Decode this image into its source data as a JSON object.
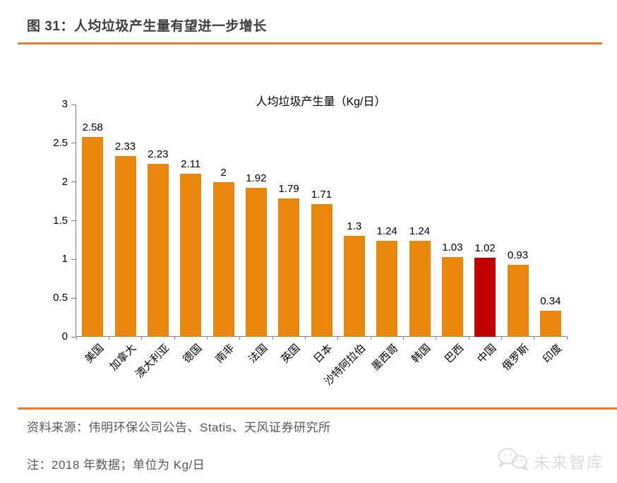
{
  "figure": {
    "title": "图 31：人均垃圾产生量有望进一步增长"
  },
  "chart_data": {
    "type": "bar",
    "title": "人均垃圾产生量（Kg/日）",
    "categories": [
      "美国",
      "加拿大",
      "澳大利亚",
      "德国",
      "南非",
      "法国",
      "英国",
      "日本",
      "沙特阿拉伯",
      "墨西哥",
      "韩国",
      "巴西",
      "中国",
      "俄罗斯",
      "印度"
    ],
    "values": [
      2.58,
      2.33,
      2.23,
      2.11,
      2,
      1.92,
      1.79,
      1.71,
      1.3,
      1.24,
      1.24,
      1.03,
      1.02,
      0.93,
      0.34
    ],
    "value_labels": [
      "2.58",
      "2.33",
      "2.23",
      "2.11",
      "2",
      "1.92",
      "1.79",
      "1.71",
      "1.3",
      "1.24",
      "1.24",
      "1.03",
      "1.02",
      "0.93",
      "0.34"
    ],
    "highlight_category": "中国",
    "highlight_index": 12,
    "ylim": [
      0,
      3
    ],
    "yticks": [
      0,
      0.5,
      1,
      1.5,
      2,
      2.5,
      3
    ],
    "ytick_labels": [
      "0",
      "0.5",
      "1",
      "1.5",
      "2",
      "2.5",
      "3"
    ],
    "grid": false,
    "legend": "none",
    "bar_color": "#e8860d",
    "highlight_color": "#c00000"
  },
  "footer": {
    "source": "资料来源：伟明环保公司公告、Statis、天风证券研究所",
    "note": "注：2018 年数据；单位为 Kg/日",
    "watermark": "未来智库"
  },
  "colors": {
    "accent_orange": "#e87e2b",
    "title_text": "#3f3f3f",
    "footer_text": "#595959",
    "axis_gray": "#808080",
    "watermark_gray": "#dcdcdc"
  }
}
